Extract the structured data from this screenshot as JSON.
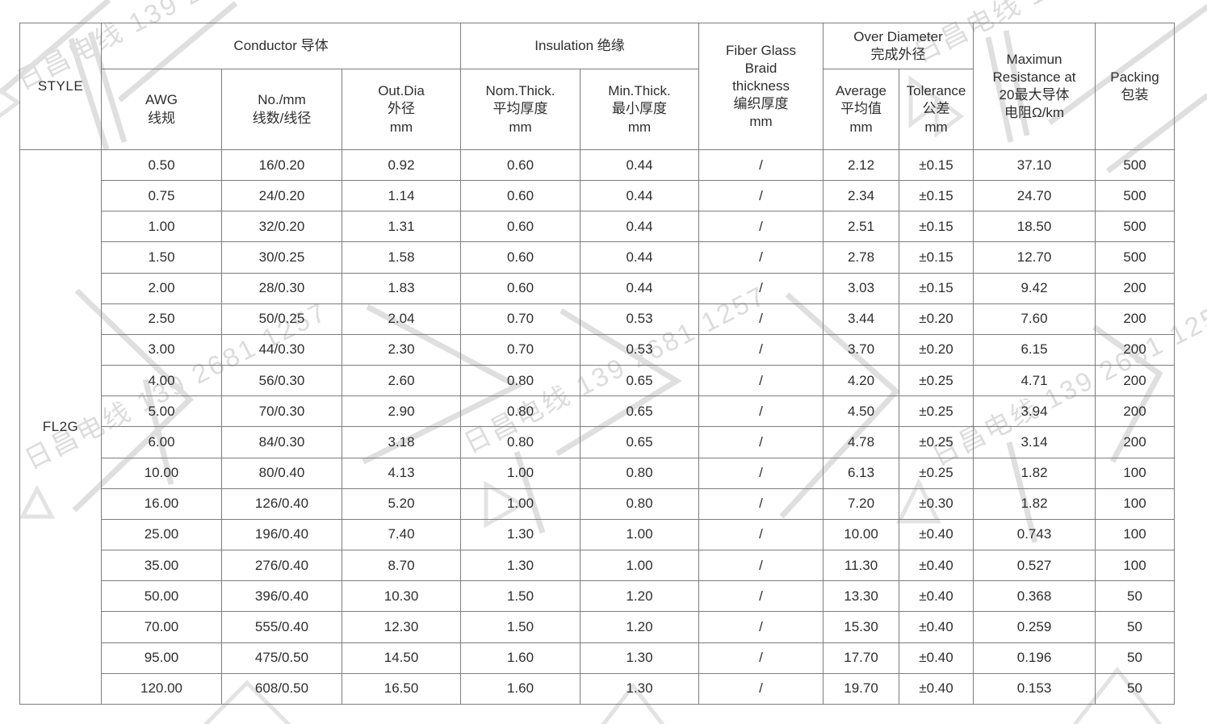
{
  "watermark": {
    "text": "日昌电线 139 2681 1257",
    "color": "#dcdcdc"
  },
  "table": {
    "header": {
      "style_label": "STYLE",
      "groups": {
        "conductor": "Conductor 导体",
        "insulation": "Insulation 绝缘",
        "fiber_glass": "Fiber Glass\nBraid\nthickness\n编织厚度\nmm",
        "over_diameter": "Over Diameter\n完成外径",
        "resistance": "Maximun\nResistance at\n20最大导体\n电阻Ω/km",
        "packing": "Packing\n包装"
      },
      "columns": {
        "awg": "AWG\n线规",
        "no_mm": "No./mm\n线数/线径",
        "out_dia": "Out.Dia\n外径\nmm",
        "nom_thick": "Nom.Thick.\n平均厚度\nmm",
        "min_thick": "Min.Thick.\n最小厚度\nmm",
        "average": "Average\n平均值\nmm",
        "tolerance": "Tolerance\n公差\nmm"
      }
    },
    "style_value": "FL2G",
    "rows": [
      [
        "0.50",
        "16/0.20",
        "0.92",
        "0.60",
        "0.44",
        "/",
        "2.12",
        "±0.15",
        "37.10",
        "500"
      ],
      [
        "0.75",
        "24/0.20",
        "1.14",
        "0.60",
        "0.44",
        "/",
        "2.34",
        "±0.15",
        "24.70",
        "500"
      ],
      [
        "1.00",
        "32/0.20",
        "1.31",
        "0.60",
        "0.44",
        "/",
        "2.51",
        "±0.15",
        "18.50",
        "500"
      ],
      [
        "1.50",
        "30/0.25",
        "1.58",
        "0.60",
        "0.44",
        "/",
        "2.78",
        "±0.15",
        "12.70",
        "500"
      ],
      [
        "2.00",
        "28/0.30",
        "1.83",
        "0.60",
        "0.44",
        "/",
        "3.03",
        "±0.15",
        "9.42",
        "200"
      ],
      [
        "2.50",
        "50/0.25",
        "2.04",
        "0.70",
        "0.53",
        "/",
        "3.44",
        "±0.20",
        "7.60",
        "200"
      ],
      [
        "3.00",
        "44/0.30",
        "2.30",
        "0.70",
        "0.53",
        "/",
        "3.70",
        "±0.20",
        "6.15",
        "200"
      ],
      [
        "4.00",
        "56/0.30",
        "2.60",
        "0.80",
        "0.65",
        "/",
        "4.20",
        "±0.25",
        "4.71",
        "200"
      ],
      [
        "5.00",
        "70/0.30",
        "2.90",
        "0.80",
        "0.65",
        "/",
        "4.50",
        "±0.25",
        "3.94",
        "200"
      ],
      [
        "6.00",
        "84/0.30",
        "3.18",
        "0.80",
        "0.65",
        "/",
        "4.78",
        "±0.25",
        "3.14",
        "200"
      ],
      [
        "10.00",
        "80/0.40",
        "4.13",
        "1.00",
        "0.80",
        "/",
        "6.13",
        "±0.25",
        "1.82",
        "100"
      ],
      [
        "16.00",
        "126/0.40",
        "5.20",
        "1.00",
        "0.80",
        "/",
        "7.20",
        "±0.30",
        "1.82",
        "100"
      ],
      [
        "25.00",
        "196/0.40",
        "7.40",
        "1.30",
        "1.00",
        "/",
        "10.00",
        "±0.40",
        "0.743",
        "100"
      ],
      [
        "35.00",
        "276/0.40",
        "8.70",
        "1.30",
        "1.00",
        "/",
        "11.30",
        "±0.40",
        "0.527",
        "100"
      ],
      [
        "50.00",
        "396/0.40",
        "10.30",
        "1.50",
        "1.20",
        "/",
        "13.30",
        "±0.40",
        "0.368",
        "50"
      ],
      [
        "70.00",
        "555/0.40",
        "12.30",
        "1.50",
        "1.20",
        "/",
        "15.30",
        "±0.40",
        "0.259",
        "50"
      ],
      [
        "95.00",
        "475/0.50",
        "14.50",
        "1.60",
        "1.30",
        "/",
        "17.70",
        "±0.40",
        "0.196",
        "50"
      ],
      [
        "120.00",
        "608/0.50",
        "16.50",
        "1.60",
        "1.30",
        "/",
        "19.70",
        "±0.40",
        "0.153",
        "50"
      ]
    ]
  }
}
